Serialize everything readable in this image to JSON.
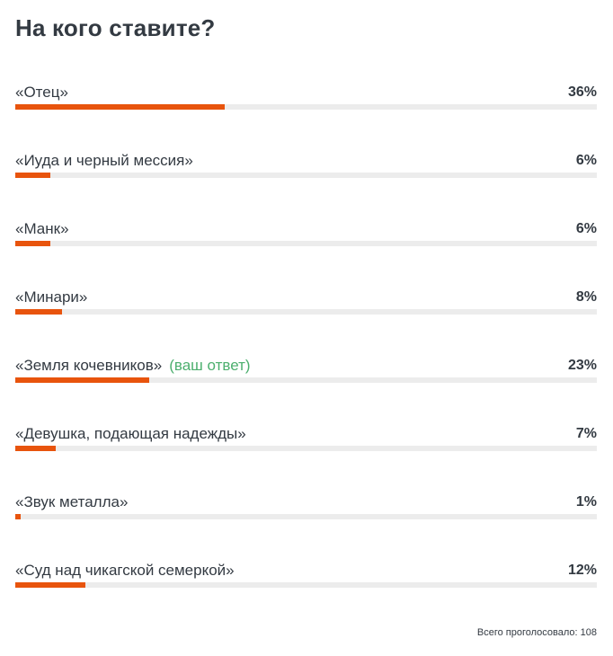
{
  "poll": {
    "title": "На кого ставите?",
    "your_answer_label": "(ваш ответ)",
    "total_label": "Всего проголосовало: 108",
    "accent_color": "#e8540d",
    "track_color": "#ececec",
    "your_answer_color": "#4caf6e",
    "options": [
      {
        "label": "«Отец»",
        "percent_text": "36%",
        "value": 36
      },
      {
        "label": "«Иуда и черный мессия»",
        "percent_text": "6%",
        "value": 6
      },
      {
        "label": "«Манк»",
        "percent_text": "6%",
        "value": 6
      },
      {
        "label": "«Минари»",
        "percent_text": "8%",
        "value": 8
      },
      {
        "label": "«Земля кочевников»",
        "percent_text": "23%",
        "value": 23
      },
      {
        "label": "«Девушка, подающая надежды»",
        "percent_text": "7%",
        "value": 7
      },
      {
        "label": "«Звук металла»",
        "percent_text": "1%",
        "value": 1
      },
      {
        "label": "«Суд над чикагской семеркой»",
        "percent_text": "12%",
        "value": 12
      }
    ]
  }
}
